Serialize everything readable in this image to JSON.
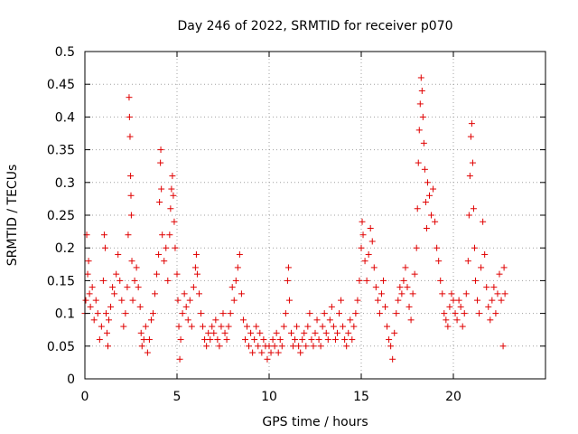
{
  "chart_data": {
    "type": "scatter",
    "title": "Day 246 of 2022, SRMTID for receiver p070",
    "xlabel": "GPS time / hours",
    "ylabel": "SRMTID / TECUs",
    "xlim": [
      0,
      25
    ],
    "ylim": [
      0,
      0.5
    ],
    "x_ticks": [
      0,
      5,
      10,
      15,
      20
    ],
    "x_tick_labels": [
      "0",
      "5",
      "10",
      "15",
      "20"
    ],
    "y_ticks": [
      0,
      0.05,
      0.1,
      0.15,
      0.2,
      0.25,
      0.3,
      0.35,
      0.4,
      0.45,
      0.5
    ],
    "y_tick_labels": [
      "0",
      "0.05",
      "0.1",
      "0.15",
      "0.2",
      "0.25",
      "0.3",
      "0.35",
      "0.4",
      "0.45",
      "0.5"
    ],
    "grid": true,
    "marker": "+",
    "color": "#e00000",
    "series": [
      {
        "name": "SRMTID",
        "points": [
          [
            0.0,
            0.1
          ],
          [
            0.05,
            0.12
          ],
          [
            0.1,
            0.22
          ],
          [
            0.15,
            0.16
          ],
          [
            0.2,
            0.18
          ],
          [
            0.25,
            0.13
          ],
          [
            0.3,
            0.11
          ],
          [
            0.4,
            0.14
          ],
          [
            0.5,
            0.09
          ],
          [
            0.6,
            0.12
          ],
          [
            0.7,
            0.1
          ],
          [
            0.8,
            0.06
          ],
          [
            0.9,
            0.08
          ],
          [
            1.0,
            0.15
          ],
          [
            1.05,
            0.22
          ],
          [
            1.1,
            0.2
          ],
          [
            1.15,
            0.1
          ],
          [
            1.2,
            0.07
          ],
          [
            1.25,
            0.05
          ],
          [
            1.3,
            0.09
          ],
          [
            1.4,
            0.11
          ],
          [
            1.5,
            0.14
          ],
          [
            1.6,
            0.13
          ],
          [
            1.7,
            0.16
          ],
          [
            1.8,
            0.19
          ],
          [
            1.9,
            0.15
          ],
          [
            2.0,
            0.12
          ],
          [
            2.1,
            0.08
          ],
          [
            2.2,
            0.1
          ],
          [
            2.3,
            0.14
          ],
          [
            2.35,
            0.22
          ],
          [
            2.4,
            0.43
          ],
          [
            2.42,
            0.4
          ],
          [
            2.45,
            0.37
          ],
          [
            2.48,
            0.31
          ],
          [
            2.5,
            0.28
          ],
          [
            2.52,
            0.25
          ],
          [
            2.55,
            0.18
          ],
          [
            2.6,
            0.12
          ],
          [
            2.7,
            0.15
          ],
          [
            2.8,
            0.17
          ],
          [
            2.9,
            0.14
          ],
          [
            3.0,
            0.11
          ],
          [
            3.05,
            0.07
          ],
          [
            3.1,
            0.05
          ],
          [
            3.2,
            0.06
          ],
          [
            3.3,
            0.08
          ],
          [
            3.4,
            0.04
          ],
          [
            3.5,
            0.06
          ],
          [
            3.6,
            0.09
          ],
          [
            3.7,
            0.1
          ],
          [
            3.8,
            0.13
          ],
          [
            3.9,
            0.16
          ],
          [
            4.0,
            0.19
          ],
          [
            4.05,
            0.27
          ],
          [
            4.1,
            0.33
          ],
          [
            4.12,
            0.35
          ],
          [
            4.15,
            0.29
          ],
          [
            4.2,
            0.22
          ],
          [
            4.3,
            0.18
          ],
          [
            4.4,
            0.2
          ],
          [
            4.5,
            0.15
          ],
          [
            4.6,
            0.22
          ],
          [
            4.65,
            0.26
          ],
          [
            4.7,
            0.29
          ],
          [
            4.75,
            0.31
          ],
          [
            4.8,
            0.28
          ],
          [
            4.85,
            0.24
          ],
          [
            4.9,
            0.2
          ],
          [
            5.0,
            0.16
          ],
          [
            5.05,
            0.12
          ],
          [
            5.1,
            0.08
          ],
          [
            5.15,
            0.03
          ],
          [
            5.2,
            0.06
          ],
          [
            5.3,
            0.1
          ],
          [
            5.4,
            0.13
          ],
          [
            5.5,
            0.11
          ],
          [
            5.6,
            0.09
          ],
          [
            5.7,
            0.12
          ],
          [
            5.8,
            0.08
          ],
          [
            5.9,
            0.14
          ],
          [
            6.0,
            0.17
          ],
          [
            6.05,
            0.19
          ],
          [
            6.1,
            0.16
          ],
          [
            6.2,
            0.13
          ],
          [
            6.3,
            0.1
          ],
          [
            6.4,
            0.08
          ],
          [
            6.5,
            0.06
          ],
          [
            6.6,
            0.05
          ],
          [
            6.7,
            0.07
          ],
          [
            6.8,
            0.06
          ],
          [
            6.9,
            0.08
          ],
          [
            7.0,
            0.07
          ],
          [
            7.1,
            0.09
          ],
          [
            7.2,
            0.06
          ],
          [
            7.3,
            0.05
          ],
          [
            7.4,
            0.08
          ],
          [
            7.5,
            0.1
          ],
          [
            7.6,
            0.07
          ],
          [
            7.7,
            0.06
          ],
          [
            7.8,
            0.08
          ],
          [
            7.9,
            0.1
          ],
          [
            8.0,
            0.14
          ],
          [
            8.1,
            0.12
          ],
          [
            8.2,
            0.15
          ],
          [
            8.3,
            0.17
          ],
          [
            8.4,
            0.19
          ],
          [
            8.5,
            0.13
          ],
          [
            8.6,
            0.09
          ],
          [
            8.7,
            0.06
          ],
          [
            8.8,
            0.08
          ],
          [
            8.9,
            0.05
          ],
          [
            9.0,
            0.07
          ],
          [
            9.1,
            0.04
          ],
          [
            9.2,
            0.06
          ],
          [
            9.3,
            0.08
          ],
          [
            9.4,
            0.05
          ],
          [
            9.5,
            0.07
          ],
          [
            9.6,
            0.04
          ],
          [
            9.7,
            0.06
          ],
          [
            9.8,
            0.05
          ],
          [
            9.9,
            0.03
          ],
          [
            10.0,
            0.05
          ],
          [
            10.1,
            0.04
          ],
          [
            10.2,
            0.06
          ],
          [
            10.3,
            0.05
          ],
          [
            10.4,
            0.07
          ],
          [
            10.5,
            0.04
          ],
          [
            10.6,
            0.06
          ],
          [
            10.7,
            0.05
          ],
          [
            10.8,
            0.08
          ],
          [
            10.9,
            0.1
          ],
          [
            11.0,
            0.15
          ],
          [
            11.05,
            0.17
          ],
          [
            11.1,
            0.12
          ],
          [
            11.2,
            0.07
          ],
          [
            11.3,
            0.05
          ],
          [
            11.4,
            0.06
          ],
          [
            11.5,
            0.08
          ],
          [
            11.6,
            0.05
          ],
          [
            11.7,
            0.04
          ],
          [
            11.8,
            0.06
          ],
          [
            11.9,
            0.07
          ],
          [
            12.0,
            0.05
          ],
          [
            12.1,
            0.08
          ],
          [
            12.2,
            0.1
          ],
          [
            12.3,
            0.06
          ],
          [
            12.4,
            0.05
          ],
          [
            12.5,
            0.07
          ],
          [
            12.6,
            0.09
          ],
          [
            12.7,
            0.06
          ],
          [
            12.8,
            0.05
          ],
          [
            12.9,
            0.08
          ],
          [
            13.0,
            0.1
          ],
          [
            13.1,
            0.07
          ],
          [
            13.2,
            0.06
          ],
          [
            13.3,
            0.09
          ],
          [
            13.4,
            0.11
          ],
          [
            13.5,
            0.08
          ],
          [
            13.6,
            0.06
          ],
          [
            13.7,
            0.07
          ],
          [
            13.8,
            0.1
          ],
          [
            13.9,
            0.12
          ],
          [
            14.0,
            0.08
          ],
          [
            14.1,
            0.06
          ],
          [
            14.2,
            0.05
          ],
          [
            14.3,
            0.07
          ],
          [
            14.4,
            0.09
          ],
          [
            14.5,
            0.06
          ],
          [
            14.6,
            0.08
          ],
          [
            14.7,
            0.1
          ],
          [
            14.8,
            0.12
          ],
          [
            14.9,
            0.15
          ],
          [
            15.0,
            0.2
          ],
          [
            15.05,
            0.24
          ],
          [
            15.1,
            0.22
          ],
          [
            15.2,
            0.18
          ],
          [
            15.3,
            0.15
          ],
          [
            15.4,
            0.19
          ],
          [
            15.5,
            0.23
          ],
          [
            15.6,
            0.21
          ],
          [
            15.7,
            0.17
          ],
          [
            15.8,
            0.14
          ],
          [
            15.9,
            0.12
          ],
          [
            16.0,
            0.1
          ],
          [
            16.1,
            0.13
          ],
          [
            16.2,
            0.15
          ],
          [
            16.3,
            0.11
          ],
          [
            16.4,
            0.08
          ],
          [
            16.5,
            0.06
          ],
          [
            16.6,
            0.05
          ],
          [
            16.7,
            0.03
          ],
          [
            16.8,
            0.07
          ],
          [
            16.9,
            0.1
          ],
          [
            17.0,
            0.12
          ],
          [
            17.1,
            0.14
          ],
          [
            17.2,
            0.13
          ],
          [
            17.3,
            0.15
          ],
          [
            17.4,
            0.17
          ],
          [
            17.5,
            0.14
          ],
          [
            17.6,
            0.11
          ],
          [
            17.7,
            0.09
          ],
          [
            17.8,
            0.13
          ],
          [
            17.9,
            0.16
          ],
          [
            18.0,
            0.2
          ],
          [
            18.05,
            0.26
          ],
          [
            18.1,
            0.33
          ],
          [
            18.15,
            0.38
          ],
          [
            18.2,
            0.42
          ],
          [
            18.25,
            0.46
          ],
          [
            18.3,
            0.44
          ],
          [
            18.35,
            0.4
          ],
          [
            18.4,
            0.36
          ],
          [
            18.45,
            0.32
          ],
          [
            18.5,
            0.27
          ],
          [
            18.55,
            0.23
          ],
          [
            18.6,
            0.3
          ],
          [
            18.7,
            0.28
          ],
          [
            18.8,
            0.25
          ],
          [
            18.9,
            0.29
          ],
          [
            19.0,
            0.24
          ],
          [
            19.1,
            0.2
          ],
          [
            19.2,
            0.18
          ],
          [
            19.3,
            0.15
          ],
          [
            19.4,
            0.13
          ],
          [
            19.5,
            0.1
          ],
          [
            19.6,
            0.09
          ],
          [
            19.7,
            0.08
          ],
          [
            19.8,
            0.11
          ],
          [
            19.9,
            0.13
          ],
          [
            20.0,
            0.12
          ],
          [
            20.1,
            0.1
          ],
          [
            20.2,
            0.09
          ],
          [
            20.3,
            0.12
          ],
          [
            20.4,
            0.11
          ],
          [
            20.5,
            0.08
          ],
          [
            20.6,
            0.1
          ],
          [
            20.7,
            0.13
          ],
          [
            20.8,
            0.18
          ],
          [
            20.85,
            0.25
          ],
          [
            20.9,
            0.31
          ],
          [
            20.95,
            0.37
          ],
          [
            21.0,
            0.39
          ],
          [
            21.05,
            0.33
          ],
          [
            21.1,
            0.26
          ],
          [
            21.15,
            0.2
          ],
          [
            21.2,
            0.15
          ],
          [
            21.3,
            0.12
          ],
          [
            21.4,
            0.1
          ],
          [
            21.5,
            0.17
          ],
          [
            21.6,
            0.24
          ],
          [
            21.7,
            0.19
          ],
          [
            21.8,
            0.14
          ],
          [
            21.9,
            0.11
          ],
          [
            22.0,
            0.09
          ],
          [
            22.1,
            0.12
          ],
          [
            22.2,
            0.14
          ],
          [
            22.3,
            0.1
          ],
          [
            22.4,
            0.13
          ],
          [
            22.5,
            0.16
          ],
          [
            22.6,
            0.12
          ],
          [
            22.7,
            0.05
          ],
          [
            22.75,
            0.17
          ],
          [
            22.8,
            0.13
          ]
        ]
      }
    ]
  }
}
